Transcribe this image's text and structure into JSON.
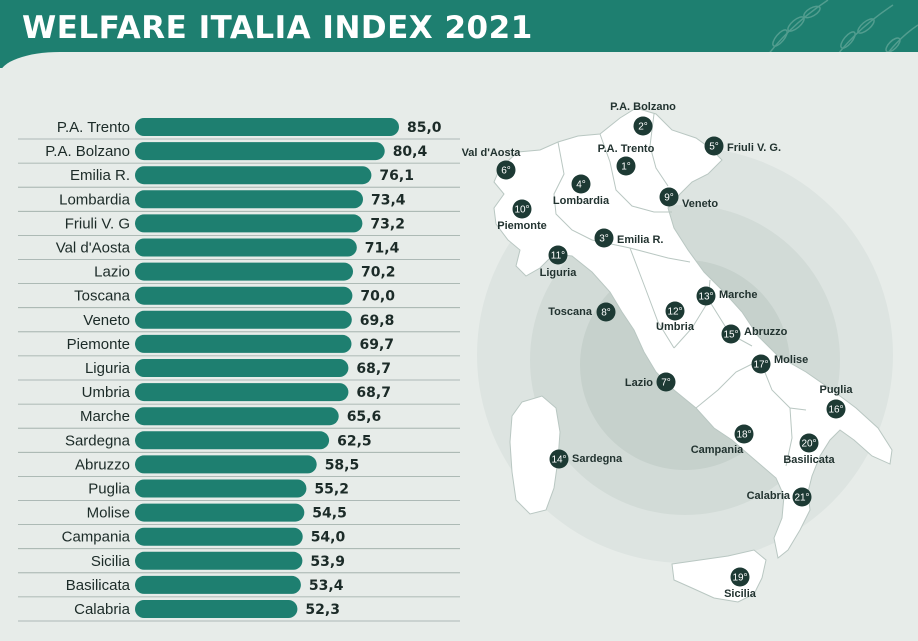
{
  "header": {
    "title": "WELFARE ITALIA INDEX 2021"
  },
  "colors": {
    "bar": "#1e7f70",
    "header": "#1e7f70",
    "background": "#e7ece9",
    "badge": "#1d3a34"
  },
  "chart_data": {
    "type": "bar",
    "orientation": "horizontal",
    "title": "WELFARE ITALIA INDEX 2021",
    "xlabel": "",
    "ylabel": "",
    "xlim": [
      0,
      90
    ],
    "grid": false,
    "categories": [
      "P.A. Trento",
      "P.A. Bolzano",
      "Emilia R.",
      "Lombardia",
      "Friuli V. G",
      "Val d'Aosta",
      "Lazio",
      "Toscana",
      "Veneto",
      "Piemonte",
      "Liguria",
      "Umbria",
      "Marche",
      "Sardegna",
      "Abruzzo",
      "Puglia",
      "Molise",
      "Campania",
      "Sicilia",
      "Basilicata",
      "Calabria"
    ],
    "values": [
      85.0,
      80.4,
      76.1,
      73.4,
      73.2,
      71.4,
      70.2,
      70.0,
      69.8,
      69.7,
      68.7,
      68.7,
      65.6,
      62.5,
      58.5,
      55.2,
      54.5,
      54.0,
      53.9,
      53.4,
      52.3
    ],
    "value_labels": [
      "85,0",
      "80,4",
      "76,1",
      "73,4",
      "73,2",
      "71,4",
      "70,2",
      "70,0",
      "69,8",
      "69,7",
      "68,7",
      "68,7",
      "65,6",
      "62,5",
      "58,5",
      "55,2",
      "54,5",
      "54,0",
      "53,9",
      "53,4",
      "52,3"
    ]
  },
  "map": {
    "regions": [
      {
        "name": "P.A. Bolzano",
        "rank": "2°"
      },
      {
        "name": "P.A. Trento",
        "rank": "1°"
      },
      {
        "name": "Friuli V. G.",
        "rank": "5°"
      },
      {
        "name": "Val d'Aosta",
        "rank": "6°"
      },
      {
        "name": "Lombardia",
        "rank": "4°"
      },
      {
        "name": "Veneto",
        "rank": "9°"
      },
      {
        "name": "Piemonte",
        "rank": "10°"
      },
      {
        "name": "Emilia R.",
        "rank": "3°"
      },
      {
        "name": "Liguria",
        "rank": "11°"
      },
      {
        "name": "Marche",
        "rank": "13°"
      },
      {
        "name": "Toscana",
        "rank": "8°"
      },
      {
        "name": "Umbria",
        "rank": "12°"
      },
      {
        "name": "Abruzzo",
        "rank": "15°"
      },
      {
        "name": "Molise",
        "rank": "17°"
      },
      {
        "name": "Lazio",
        "rank": "7°"
      },
      {
        "name": "Puglia",
        "rank": "16°"
      },
      {
        "name": "Campania",
        "rank": "18°"
      },
      {
        "name": "Basilicata",
        "rank": "20°"
      },
      {
        "name": "Sardegna",
        "rank": "14°"
      },
      {
        "name": "Calabria",
        "rank": "21°"
      },
      {
        "name": "Sicilia",
        "rank": "19°"
      }
    ]
  }
}
